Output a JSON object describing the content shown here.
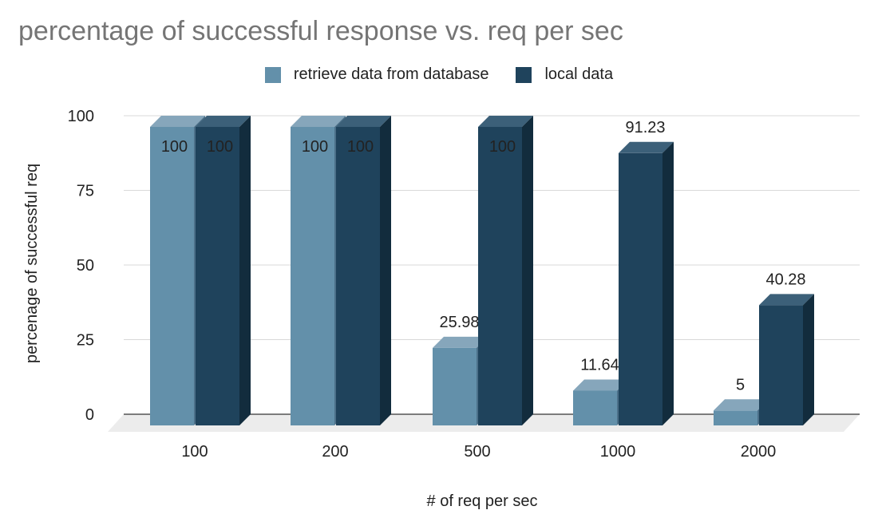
{
  "colors": {
    "series_1": "#6390aa",
    "series_1_top": "#86a6bb",
    "series_1_side": "#4c7089",
    "series_2": "#1f435c",
    "series_2_top": "#3c6079",
    "series_2_side": "#122c3d",
    "grid": "#d9d9d9",
    "floor": "#ececec",
    "title": "#757575"
  },
  "chart_data": {
    "type": "bar",
    "title": "percentage of successful response vs. req per sec",
    "xlabel": "# of req per sec",
    "ylabel": "percenage of successful req",
    "categories": [
      "100",
      "200",
      "500",
      "1000",
      "2000"
    ],
    "ylim": [
      0,
      100
    ],
    "yticks": [
      "0",
      "25",
      "50",
      "75",
      "100"
    ],
    "grid": true,
    "legend_position": "top",
    "style": "3d",
    "series": [
      {
        "name": "retrieve data from database",
        "values": [
          100,
          100,
          25.98,
          11.64,
          5
        ],
        "labels": [
          "100",
          "100",
          "25.98",
          "11.64",
          "5"
        ]
      },
      {
        "name": "local data",
        "values": [
          100,
          100,
          100,
          91.23,
          40.28
        ],
        "labels": [
          "100",
          "100",
          "100",
          "91.23",
          "40.28"
        ]
      }
    ]
  }
}
